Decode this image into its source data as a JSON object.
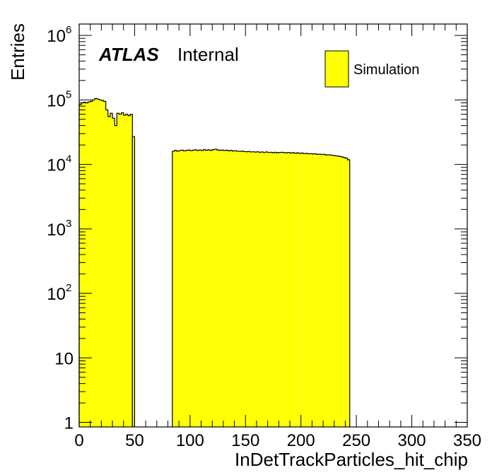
{
  "chart_data": {
    "type": "bar",
    "subtype": "histogram-step-filled",
    "xlabel": "InDetTrackParticles_hit_chip",
    "ylabel": "Entries",
    "x_ticks": [
      "0",
      "50",
      "100",
      "150",
      "200",
      "250",
      "300",
      "350"
    ],
    "y_ticks": [
      {
        "value": 1,
        "label": "1"
      },
      {
        "value": 10,
        "label": "10"
      },
      {
        "value": 100,
        "label": "10",
        "exp": "2"
      },
      {
        "value": 1000,
        "label": "10",
        "exp": "3"
      },
      {
        "value": 10000,
        "label": "10",
        "exp": "4"
      },
      {
        "value": 100000,
        "label": "10",
        "exp": "5"
      },
      {
        "value": 1000000,
        "label": "10",
        "exp": "6"
      }
    ],
    "xlim": [
      0,
      350
    ],
    "ylim": [
      0.85,
      1500000
    ],
    "yscale": "log",
    "grid": false,
    "legend_position": "top-right",
    "fill_color": "#ffff00",
    "line_color": "#000000",
    "atlas_label": "ATLAS",
    "atlas_status": "Internal",
    "series": [
      {
        "name": "Simulation",
        "bin_width": 2,
        "bins": [
          {
            "start": 0,
            "values": [
              85000,
              90000,
              92000,
              90000,
              93000,
              95000,
              100000,
              105000,
              103000,
              100000,
              98000,
              95000,
              70000,
              55000,
              62000,
              52000,
              40000,
              62000,
              60000,
              63000,
              58000,
              60000,
              57000,
              60000
            ]
          },
          {
            "start": 48,
            "values": [
              27000
            ]
          },
          {
            "start": 84,
            "values": [
              16000,
              16500,
              16000,
              16400,
              16600,
              16200,
              16500,
              16700,
              16300,
              16600,
              16800,
              16400,
              16700,
              16500,
              16900,
              16600,
              16800,
              16500,
              16900,
              17200,
              16800,
              16500,
              16700,
              16400,
              16600,
              16200,
              16500,
              16100,
              16300,
              16000,
              15900,
              16100,
              15800,
              15700,
              15900,
              15600,
              15700,
              15500,
              15700,
              15400,
              15600,
              15300,
              15600,
              15300,
              15400,
              15200,
              15400,
              15100,
              15300,
              15400,
              15200,
              15100,
              15300,
              15000,
              15200,
              14900,
              15100,
              14800,
              15000,
              14700,
              14800,
              14600,
              14700,
              14500,
              14600,
              14300,
              14400,
              14200,
              14300,
              14000,
              14100,
              13900,
              13800,
              13600,
              13500,
              13300,
              13100,
              12800,
              12500,
              11800
            ]
          }
        ],
        "bins_note_hidden": ""
      }
    ]
  }
}
